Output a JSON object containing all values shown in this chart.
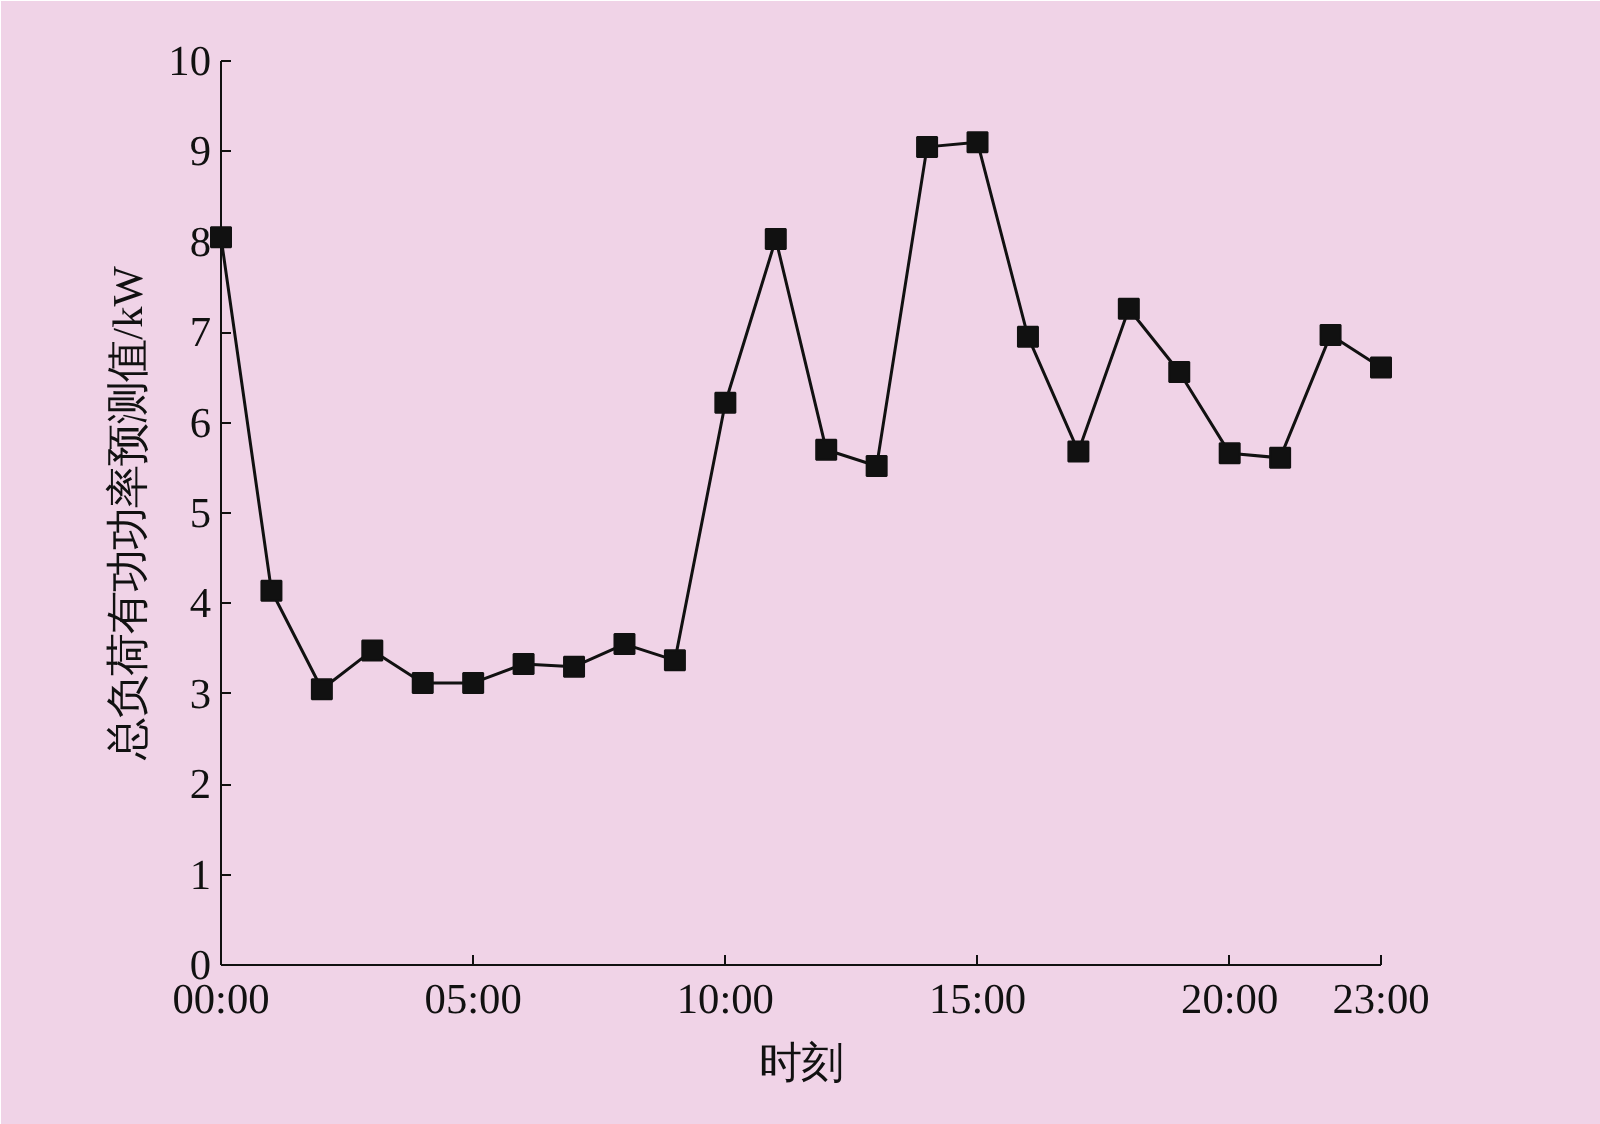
{
  "chart_data": {
    "type": "line",
    "xlabel": "时刻",
    "ylabel": "总负荷有功功率预测值/kW",
    "x": [
      0,
      1,
      2,
      3,
      4,
      5,
      6,
      7,
      8,
      9,
      10,
      11,
      12,
      13,
      14,
      15,
      16,
      17,
      18,
      19,
      20,
      21,
      22,
      23
    ],
    "series": [
      {
        "color": "#111111",
        "values": [
          8.05,
          4.14,
          3.05,
          3.48,
          3.12,
          3.12,
          3.33,
          3.3,
          3.55,
          3.37,
          6.22,
          8.03,
          5.7,
          5.52,
          9.05,
          9.1,
          6.95,
          5.68,
          7.26,
          6.56,
          5.66,
          5.61,
          6.97,
          6.61
        ]
      }
    ],
    "xlim": [
      0,
      23
    ],
    "ylim": [
      0,
      10
    ],
    "xticks": [
      {
        "value": 0,
        "label": "00:00"
      },
      {
        "value": 5,
        "label": "05:00"
      },
      {
        "value": 10,
        "label": "10:00"
      },
      {
        "value": 15,
        "label": "15:00"
      },
      {
        "value": 20,
        "label": "20:00"
      },
      {
        "value": 23,
        "label": "23:00"
      }
    ],
    "yticks": [
      0,
      1,
      2,
      3,
      4,
      5,
      6,
      7,
      8,
      9,
      10
    ],
    "marker": "square",
    "line_style": "solid",
    "grid": false
  }
}
